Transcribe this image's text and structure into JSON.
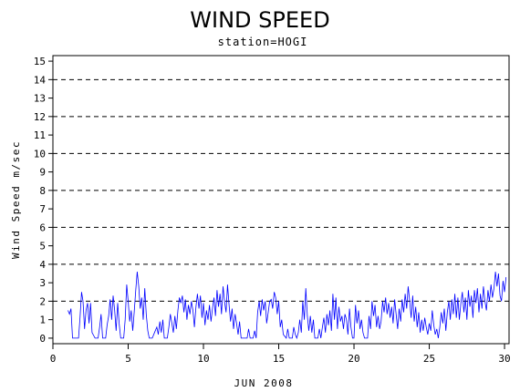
{
  "chart_data": {
    "type": "line",
    "title": "WIND SPEED",
    "subtitle": "station=HOGI",
    "xlabel": "JUN 2008",
    "ylabel": "Wind Speed m/sec",
    "xlim": [
      0,
      30.3
    ],
    "ylim": [
      -0.3,
      15.3
    ],
    "x_ticks": [
      0,
      5,
      10,
      15,
      20,
      25,
      30
    ],
    "y_ticks": [
      0,
      1,
      2,
      3,
      4,
      5,
      6,
      7,
      8,
      9,
      10,
      11,
      12,
      13,
      14,
      15
    ],
    "reference_lines": [
      2,
      4,
      6,
      8,
      10,
      12,
      14
    ],
    "series_color": "#0000ff",
    "series": [
      {
        "values": [
          [
            1.0,
            1.5
          ],
          [
            1.1,
            1.3
          ],
          [
            1.2,
            1.6
          ],
          [
            1.3,
            0.0
          ],
          [
            1.5,
            0.0
          ],
          [
            1.7,
            0.0
          ],
          [
            1.8,
            1.1
          ],
          [
            1.9,
            2.5
          ],
          [
            2.0,
            2.0
          ],
          [
            2.1,
            0.5
          ],
          [
            2.2,
            1.5
          ],
          [
            2.3,
            1.9
          ],
          [
            2.4,
            0.8
          ],
          [
            2.5,
            1.9
          ],
          [
            2.6,
            0.3
          ],
          [
            2.8,
            0.0
          ],
          [
            3.0,
            0.0
          ],
          [
            3.1,
            0.6
          ],
          [
            3.2,
            1.3
          ],
          [
            3.3,
            0.0
          ],
          [
            3.5,
            0.0
          ],
          [
            3.6,
            0.7
          ],
          [
            3.7,
            1.2
          ],
          [
            3.8,
            2.1
          ],
          [
            3.9,
            1.0
          ],
          [
            4.0,
            2.3
          ],
          [
            4.1,
            1.5
          ],
          [
            4.2,
            0.4
          ],
          [
            4.3,
            1.9
          ],
          [
            4.4,
            0.8
          ],
          [
            4.5,
            0.0
          ],
          [
            4.7,
            0.0
          ],
          [
            4.8,
            1.0
          ],
          [
            4.9,
            2.9
          ],
          [
            5.0,
            2.0
          ],
          [
            5.1,
            0.9
          ],
          [
            5.2,
            1.5
          ],
          [
            5.3,
            0.4
          ],
          [
            5.4,
            1.4
          ],
          [
            5.5,
            2.6
          ],
          [
            5.6,
            3.6
          ],
          [
            5.7,
            2.8
          ],
          [
            5.8,
            1.6
          ],
          [
            5.9,
            2.2
          ],
          [
            6.0,
            1.0
          ],
          [
            6.1,
            2.7
          ],
          [
            6.2,
            1.3
          ],
          [
            6.3,
            0.4
          ],
          [
            6.4,
            0.0
          ],
          [
            6.6,
            0.0
          ],
          [
            6.8,
            0.4
          ],
          [
            6.9,
            0.6
          ],
          [
            7.0,
            0.2
          ],
          [
            7.1,
            0.9
          ],
          [
            7.2,
            0.3
          ],
          [
            7.3,
            1.0
          ],
          [
            7.4,
            0.0
          ],
          [
            7.6,
            0.0
          ],
          [
            7.7,
            0.6
          ],
          [
            7.8,
            1.3
          ],
          [
            7.9,
            0.8
          ],
          [
            8.0,
            0.3
          ],
          [
            8.1,
            1.2
          ],
          [
            8.2,
            0.5
          ],
          [
            8.3,
            1.5
          ],
          [
            8.4,
            2.2
          ],
          [
            8.5,
            1.9
          ],
          [
            8.6,
            2.3
          ],
          [
            8.7,
            1.4
          ],
          [
            8.8,
            2.1
          ],
          [
            8.9,
            1.0
          ],
          [
            9.0,
            1.8
          ],
          [
            9.1,
            1.3
          ],
          [
            9.2,
            2.0
          ],
          [
            9.3,
            1.5
          ],
          [
            9.4,
            0.6
          ],
          [
            9.5,
            1.7
          ],
          [
            9.6,
            2.4
          ],
          [
            9.7,
            1.6
          ],
          [
            9.8,
            2.3
          ],
          [
            9.9,
            1.1
          ],
          [
            10.0,
            1.9
          ],
          [
            10.1,
            0.7
          ],
          [
            10.2,
            1.5
          ],
          [
            10.3,
            1.0
          ],
          [
            10.4,
            1.8
          ],
          [
            10.5,
            0.9
          ],
          [
            10.6,
            1.6
          ],
          [
            10.7,
            2.2
          ],
          [
            10.8,
            1.2
          ],
          [
            10.9,
            2.6
          ],
          [
            11.0,
            1.7
          ],
          [
            11.1,
            2.4
          ],
          [
            11.2,
            1.3
          ],
          [
            11.3,
            2.8
          ],
          [
            11.4,
            2.0
          ],
          [
            11.5,
            1.4
          ],
          [
            11.6,
            2.9
          ],
          [
            11.7,
            1.8
          ],
          [
            11.8,
            0.9
          ],
          [
            11.9,
            1.6
          ],
          [
            12.0,
            0.5
          ],
          [
            12.1,
            1.3
          ],
          [
            12.2,
            0.8
          ],
          [
            12.3,
            0.2
          ],
          [
            12.4,
            0.9
          ],
          [
            12.5,
            0.0
          ],
          [
            12.7,
            0.0
          ],
          [
            12.9,
            0.0
          ],
          [
            13.0,
            0.5
          ],
          [
            13.1,
            0.0
          ],
          [
            13.3,
            0.0
          ],
          [
            13.4,
            0.4
          ],
          [
            13.5,
            0.0
          ],
          [
            13.6,
            1.4
          ],
          [
            13.7,
            2.0
          ],
          [
            13.8,
            1.2
          ],
          [
            13.9,
            2.1
          ],
          [
            14.0,
            1.5
          ],
          [
            14.1,
            2.0
          ],
          [
            14.2,
            0.8
          ],
          [
            14.3,
            1.4
          ],
          [
            14.4,
            2.0
          ],
          [
            14.5,
            2.1
          ],
          [
            14.6,
            1.6
          ],
          [
            14.7,
            2.5
          ],
          [
            14.8,
            2.2
          ],
          [
            14.9,
            1.3
          ],
          [
            15.0,
            2.0
          ],
          [
            15.1,
            0.6
          ],
          [
            15.2,
            1.0
          ],
          [
            15.3,
            0.2
          ],
          [
            15.5,
            0.0
          ],
          [
            15.6,
            0.5
          ],
          [
            15.7,
            0.0
          ],
          [
            15.9,
            0.0
          ],
          [
            16.0,
            0.6
          ],
          [
            16.1,
            0.2
          ],
          [
            16.2,
            0.0
          ],
          [
            16.3,
            0.3
          ],
          [
            16.4,
            1.0
          ],
          [
            16.5,
            0.3
          ],
          [
            16.6,
            2.0
          ],
          [
            16.7,
            1.0
          ],
          [
            16.8,
            2.7
          ],
          [
            16.9,
            1.2
          ],
          [
            17.0,
            0.4
          ],
          [
            17.1,
            1.2
          ],
          [
            17.2,
            0.3
          ],
          [
            17.3,
            1.0
          ],
          [
            17.4,
            0.0
          ],
          [
            17.6,
            0.0
          ],
          [
            17.7,
            0.5
          ],
          [
            17.8,
            0.0
          ],
          [
            17.9,
            0.6
          ],
          [
            18.0,
            1.1
          ],
          [
            18.1,
            0.3
          ],
          [
            18.2,
            1.3
          ],
          [
            18.3,
            0.7
          ],
          [
            18.4,
            1.5
          ],
          [
            18.5,
            0.4
          ],
          [
            18.6,
            2.4
          ],
          [
            18.7,
            1.0
          ],
          [
            18.8,
            2.2
          ],
          [
            18.9,
            0.5
          ],
          [
            19.0,
            1.7
          ],
          [
            19.1,
            0.9
          ],
          [
            19.2,
            1.2
          ],
          [
            19.3,
            0.5
          ],
          [
            19.4,
            1.3
          ],
          [
            19.5,
            1.0
          ],
          [
            19.6,
            0.2
          ],
          [
            19.7,
            1.6
          ],
          [
            19.8,
            0.6
          ],
          [
            19.9,
            0.0
          ],
          [
            20.0,
            0.0
          ],
          [
            20.1,
            1.8
          ],
          [
            20.2,
            0.8
          ],
          [
            20.3,
            1.5
          ],
          [
            20.4,
            0.5
          ],
          [
            20.5,
            1.0
          ],
          [
            20.6,
            0.3
          ],
          [
            20.7,
            0.0
          ],
          [
            20.9,
            0.0
          ],
          [
            21.0,
            1.2
          ],
          [
            21.1,
            0.5
          ],
          [
            21.2,
            2.0
          ],
          [
            21.3,
            1.2
          ],
          [
            21.4,
            1.8
          ],
          [
            21.5,
            0.6
          ],
          [
            21.6,
            1.2
          ],
          [
            21.7,
            0.5
          ],
          [
            21.8,
            0.9
          ],
          [
            21.9,
            2.0
          ],
          [
            22.0,
            1.4
          ],
          [
            22.1,
            2.2
          ],
          [
            22.2,
            1.3
          ],
          [
            22.3,
            1.9
          ],
          [
            22.4,
            1.1
          ],
          [
            22.5,
            1.7
          ],
          [
            22.6,
            0.8
          ],
          [
            22.7,
            2.1
          ],
          [
            22.8,
            1.3
          ],
          [
            22.9,
            0.5
          ],
          [
            23.0,
            1.6
          ],
          [
            23.1,
            0.9
          ],
          [
            23.2,
            2.1
          ],
          [
            23.3,
            1.4
          ],
          [
            23.4,
            2.4
          ],
          [
            23.5,
            1.6
          ],
          [
            23.6,
            2.8
          ],
          [
            23.7,
            2.0
          ],
          [
            23.8,
            1.1
          ],
          [
            23.9,
            2.3
          ],
          [
            24.0,
            0.9
          ],
          [
            24.1,
            1.7
          ],
          [
            24.2,
            0.6
          ],
          [
            24.3,
            1.4
          ],
          [
            24.4,
            0.3
          ],
          [
            24.5,
            1.0
          ],
          [
            24.6,
            0.4
          ],
          [
            24.7,
            1.1
          ],
          [
            24.8,
            0.6
          ],
          [
            24.9,
            0.2
          ],
          [
            25.0,
            0.8
          ],
          [
            25.1,
            0.4
          ],
          [
            25.2,
            1.5
          ],
          [
            25.3,
            0.7
          ],
          [
            25.4,
            0.2
          ],
          [
            25.5,
            0.5
          ],
          [
            25.6,
            0.0
          ],
          [
            25.7,
            0.6
          ],
          [
            25.8,
            1.4
          ],
          [
            25.9,
            0.8
          ],
          [
            26.0,
            1.6
          ],
          [
            26.1,
            0.4
          ],
          [
            26.2,
            1.4
          ],
          [
            26.3,
            2.0
          ],
          [
            26.4,
            1.0
          ],
          [
            26.5,
            2.1
          ],
          [
            26.6,
            1.3
          ],
          [
            26.7,
            2.4
          ],
          [
            26.8,
            1.1
          ],
          [
            26.9,
            2.2
          ],
          [
            27.0,
            1.0
          ],
          [
            27.1,
            1.9
          ],
          [
            27.2,
            2.5
          ],
          [
            27.3,
            1.4
          ],
          [
            27.4,
            2.2
          ],
          [
            27.5,
            1.0
          ],
          [
            27.6,
            2.6
          ],
          [
            27.7,
            1.7
          ],
          [
            27.8,
            2.3
          ],
          [
            27.9,
            1.1
          ],
          [
            28.0,
            2.6
          ],
          [
            28.1,
            1.9
          ],
          [
            28.2,
            2.7
          ],
          [
            28.3,
            1.4
          ],
          [
            28.4,
            2.4
          ],
          [
            28.5,
            1.6
          ],
          [
            28.6,
            2.8
          ],
          [
            28.7,
            2.0
          ],
          [
            28.8,
            1.5
          ],
          [
            28.9,
            2.6
          ],
          [
            29.0,
            2.0
          ],
          [
            29.1,
            2.9
          ],
          [
            29.2,
            2.2
          ],
          [
            29.3,
            2.7
          ],
          [
            29.4,
            3.6
          ],
          [
            29.5,
            2.8
          ],
          [
            29.6,
            3.5
          ],
          [
            29.7,
            2.3
          ],
          [
            29.8,
            2.0
          ],
          [
            29.9,
            3.1
          ],
          [
            30.0,
            2.5
          ],
          [
            30.1,
            3.3
          ]
        ]
      }
    ]
  }
}
